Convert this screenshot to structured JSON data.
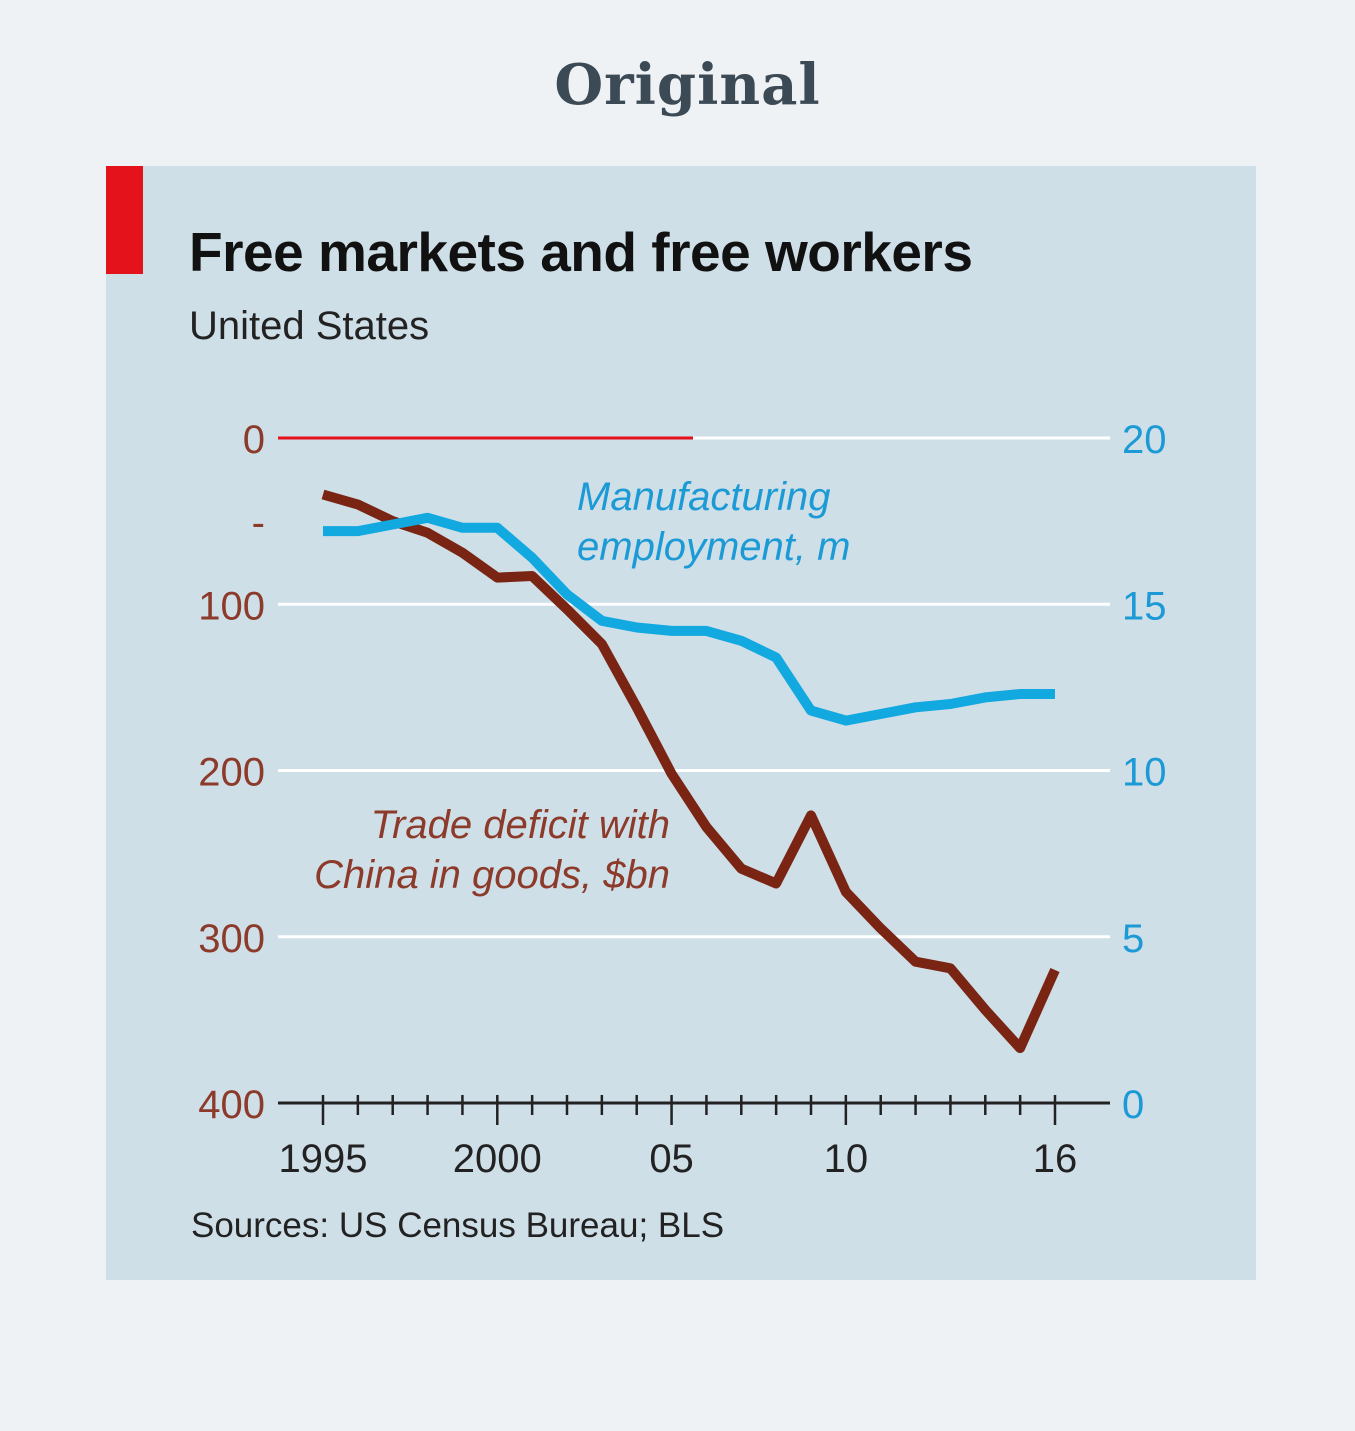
{
  "page": {
    "heading": "Original"
  },
  "colors": {
    "background": "#eef2f5",
    "panel": "#cfdfe8",
    "accent": "#e3121b",
    "trade_series": "#7a2513",
    "employment_series": "#12a8e0",
    "left_axis_text": "#8c3a2a",
    "right_axis_text": "#1b9ad6"
  },
  "chart_data": {
    "type": "line",
    "title": "Free markets and free workers",
    "subtitle": "United States",
    "source": "Sources: US Census Bureau; BLS",
    "grid": true,
    "x_range": [
      1995,
      2016
    ],
    "x_tick_labels": [
      {
        "year": 1995,
        "label": "1995"
      },
      {
        "year": 2000,
        "label": "2000"
      },
      {
        "year": 2005,
        "label": "05"
      },
      {
        "year": 2010,
        "label": "10"
      },
      {
        "year": 2016,
        "label": "16"
      }
    ],
    "left_axis": {
      "range": [
        0,
        400
      ],
      "inverted": true,
      "ticks": [
        {
          "value": 0,
          "label": "0"
        },
        {
          "value": 50,
          "label": "-"
        },
        {
          "value": 100,
          "label": "100"
        },
        {
          "value": 200,
          "label": "200"
        },
        {
          "value": 300,
          "label": "300"
        },
        {
          "value": 400,
          "label": "400"
        }
      ]
    },
    "right_axis": {
      "range": [
        0,
        20
      ],
      "ticks": [
        {
          "value": 20,
          "label": "20"
        },
        {
          "value": 15,
          "label": "15"
        },
        {
          "value": 10,
          "label": "10"
        },
        {
          "value": 5,
          "label": "5"
        },
        {
          "value": 0,
          "label": "0"
        }
      ]
    },
    "series": [
      {
        "name": "Trade deficit with China in goods, $bn",
        "label_lines": [
          "Trade deficit with",
          "China in goods, $bn"
        ],
        "axis": "left",
        "color": "#7a2513",
        "x": [
          1995,
          1996,
          1997,
          1998,
          1999,
          2000,
          2001,
          2002,
          2003,
          2004,
          2005,
          2006,
          2007,
          2008,
          2009,
          2010,
          2011,
          2012,
          2013,
          2014,
          2015,
          2016
        ],
        "values": [
          34,
          40,
          50,
          57,
          69,
          84,
          83,
          103,
          124,
          162,
          202,
          234,
          259,
          268,
          227,
          273,
          295,
          315,
          319,
          344,
          367,
          320
        ]
      },
      {
        "name": "Manufacturing employment, m",
        "label_lines": [
          "Manufacturing",
          "employment, m"
        ],
        "axis": "right",
        "color": "#12a8e0",
        "x": [
          1995,
          1996,
          1997,
          1998,
          1999,
          2000,
          2001,
          2002,
          2003,
          2004,
          2005,
          2006,
          2007,
          2008,
          2009,
          2010,
          2011,
          2012,
          2013,
          2014,
          2015,
          2016
        ],
        "values": [
          17.2,
          17.2,
          17.4,
          17.6,
          17.3,
          17.3,
          16.4,
          15.3,
          14.5,
          14.3,
          14.2,
          14.2,
          13.9,
          13.4,
          11.8,
          11.5,
          11.7,
          11.9,
          12.0,
          12.2,
          12.3,
          12.3
        ]
      }
    ]
  }
}
